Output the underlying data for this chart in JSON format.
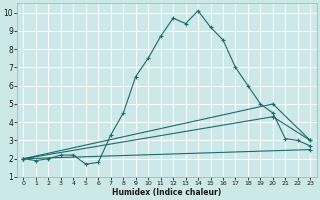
{
  "xlabel": "Humidex (Indice chaleur)",
  "xlim": [
    -0.5,
    23.5
  ],
  "ylim": [
    1,
    10.5
  ],
  "yticks": [
    1,
    2,
    3,
    4,
    5,
    6,
    7,
    8,
    9,
    10
  ],
  "xticks": [
    0,
    1,
    2,
    3,
    4,
    5,
    6,
    7,
    8,
    9,
    10,
    11,
    12,
    13,
    14,
    15,
    16,
    17,
    18,
    19,
    20,
    21,
    22,
    23
  ],
  "background_color": "#cce8e8",
  "grid_color": "#ffffff",
  "line_color": "#1a6b6b",
  "line1_x": [
    0,
    1,
    2,
    3,
    4,
    5,
    6,
    7,
    8,
    9,
    10,
    11,
    12,
    13,
    14,
    15,
    16,
    17,
    18,
    19,
    20,
    21,
    22,
    23
  ],
  "line1_y": [
    2.0,
    1.9,
    2.0,
    2.2,
    2.2,
    1.7,
    1.8,
    3.3,
    4.5,
    6.5,
    7.5,
    8.7,
    9.7,
    9.4,
    10.1,
    9.2,
    8.5,
    7.0,
    6.0,
    5.0,
    4.5,
    3.1,
    3.0,
    2.7
  ],
  "line2_x": [
    0,
    20,
    23
  ],
  "line2_y": [
    2.0,
    5.0,
    3.0
  ],
  "line3_x": [
    0,
    20,
    23
  ],
  "line3_y": [
    2.0,
    4.3,
    3.0
  ],
  "line4_x": [
    0,
    23
  ],
  "line4_y": [
    2.0,
    2.5
  ]
}
